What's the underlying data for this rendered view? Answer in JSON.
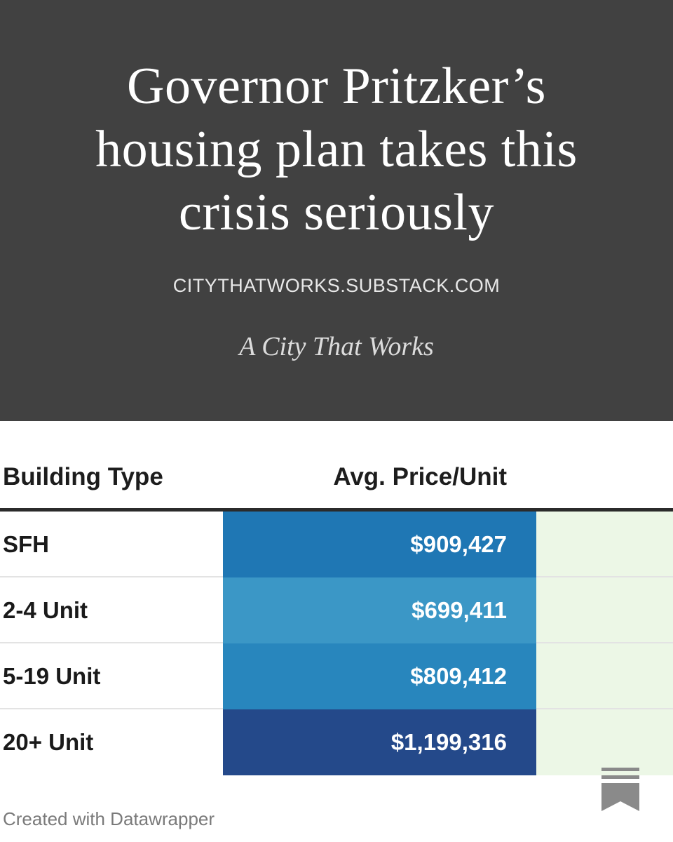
{
  "hero": {
    "title": "Governor Pritzker’s housing plan takes this crisis seriously",
    "domain": "CITYTHATWORKS.SUBSTACK.COM",
    "publication": "A City That Works",
    "background_color": "#414141"
  },
  "table": {
    "columns": [
      "Building Type",
      "Avg. Price/Unit"
    ],
    "rows": [
      {
        "type": "SFH",
        "price": "$909,427",
        "color": "#1f77b4"
      },
      {
        "type": "2-4 Unit",
        "price": "$699,411",
        "color": "#3b97c6"
      },
      {
        "type": "5-19 Unit",
        "price": "$809,412",
        "color": "#2886bd"
      },
      {
        "type": "20+ Unit",
        "price": "$1,199,316",
        "color": "#24498a"
      }
    ],
    "extra_column_color": "#ecf7e6"
  },
  "footer": {
    "credit": "Created with Datawrapper",
    "bookmark_icon": "bookmark-icon"
  }
}
